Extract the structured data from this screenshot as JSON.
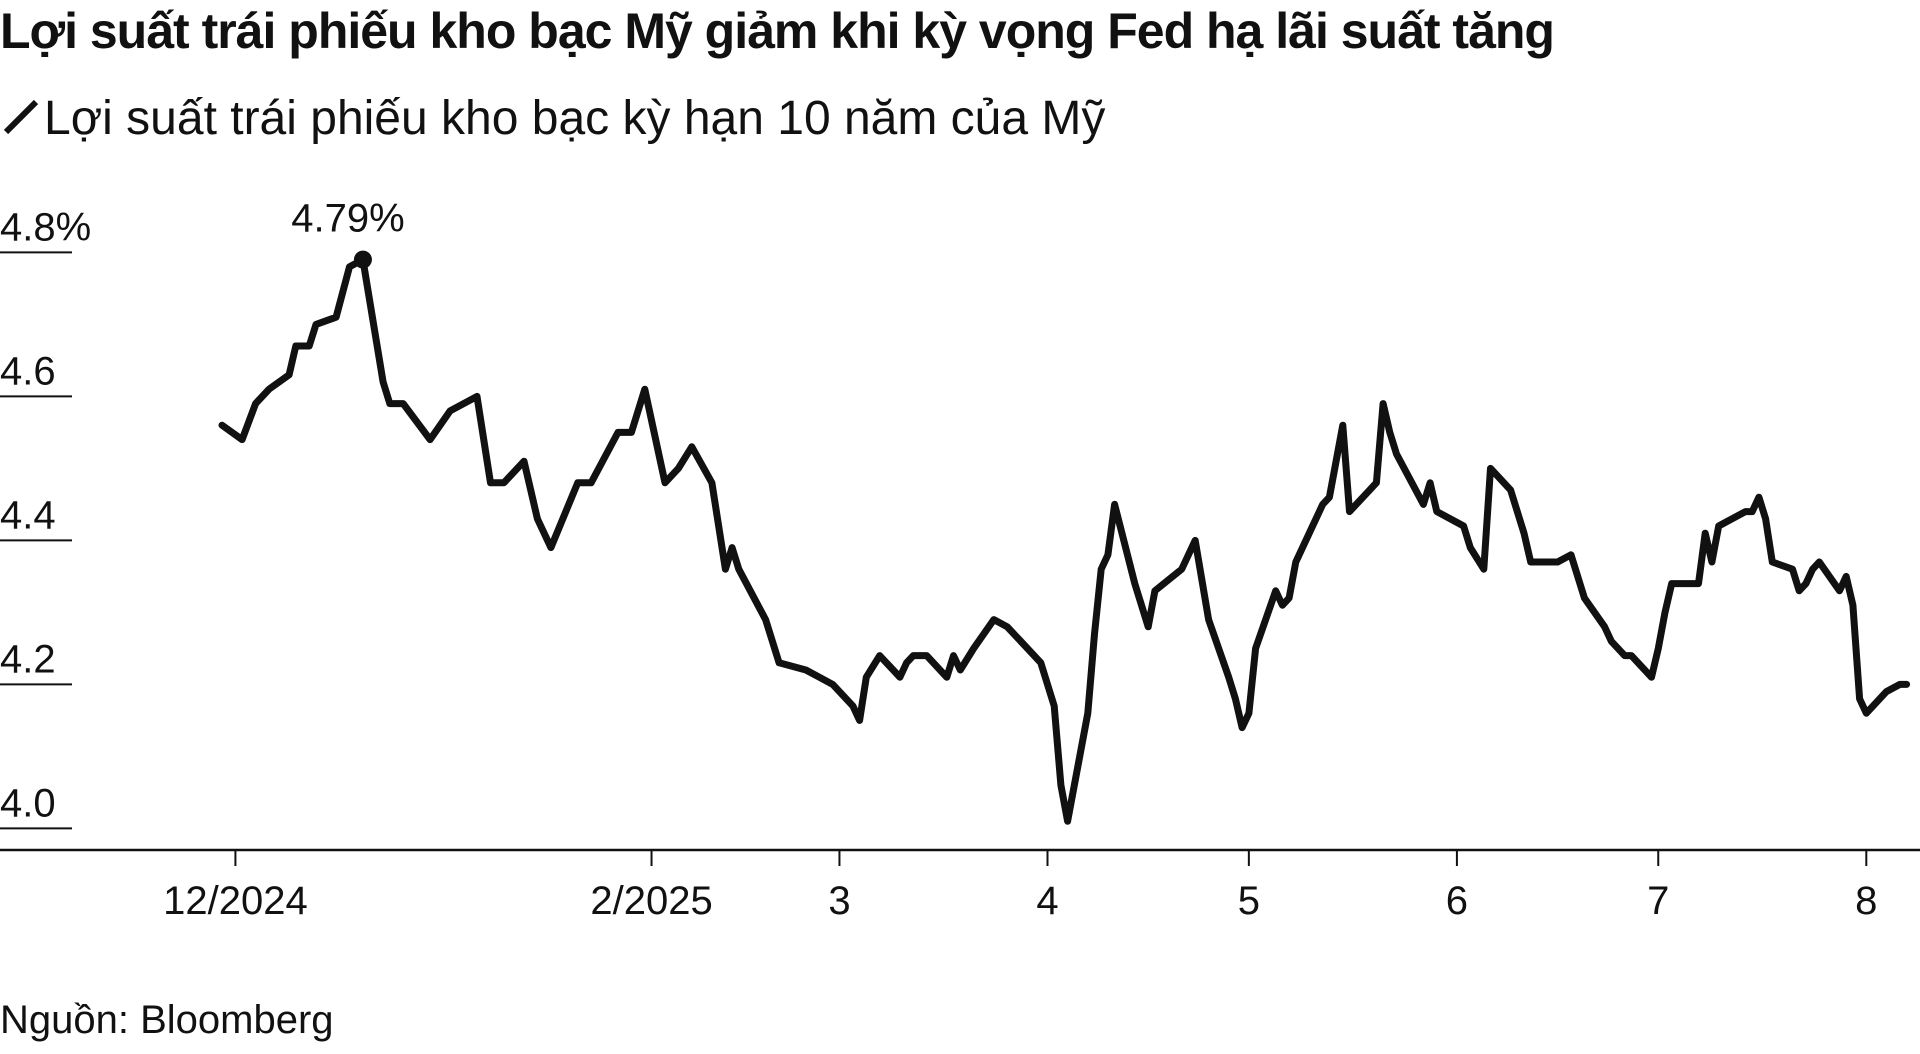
{
  "title": "Lợi suất trái phiếu kho bạc Mỹ giảm khi kỳ vọng Fed hạ lãi suất tăng",
  "source": "Nguồn: Bloomberg",
  "colors": {
    "line": "#111111",
    "axis": "#111111",
    "background": "#ffffff"
  },
  "chart_data": {
    "type": "line",
    "series": [
      {
        "name": "Lợi suất trái phiếu kho bạc kỳ hạn 10 năm của Mỹ",
        "x": [
          "2024-11-29",
          "2024-12-02",
          "2024-12-04",
          "2024-12-06",
          "2024-12-09",
          "2024-12-10",
          "2024-12-12",
          "2024-12-13",
          "2024-12-16",
          "2024-12-18",
          "2024-12-20",
          "2024-12-23",
          "2024-12-24",
          "2024-12-26",
          "2024-12-30",
          "2025-01-02",
          "2025-01-06",
          "2025-01-08",
          "2025-01-10",
          "2025-01-13",
          "2025-01-15",
          "2025-01-17",
          "2025-01-21",
          "2025-01-23",
          "2025-01-27",
          "2025-01-29",
          "2025-01-31",
          "2025-02-03",
          "2025-02-05",
          "2025-02-07",
          "2025-02-10",
          "2025-02-12",
          "2025-02-13",
          "2025-02-14",
          "2025-02-18",
          "2025-02-20",
          "2025-02-24",
          "2025-02-26",
          "2025-02-28",
          "2025-03-03",
          "2025-03-04",
          "2025-03-05",
          "2025-03-07",
          "2025-03-10",
          "2025-03-11",
          "2025-03-12",
          "2025-03-14",
          "2025-03-17",
          "2025-03-18",
          "2025-03-19",
          "2025-03-21",
          "2025-03-24",
          "2025-03-26",
          "2025-03-28",
          "2025-03-31",
          "2025-04-02",
          "2025-04-03",
          "2025-04-04",
          "2025-04-07",
          "2025-04-08",
          "2025-04-09",
          "2025-04-10",
          "2025-04-11",
          "2025-04-14",
          "2025-04-16",
          "2025-04-17",
          "2025-04-21",
          "2025-04-23",
          "2025-04-25",
          "2025-04-28",
          "2025-04-29",
          "2025-04-30",
          "2025-05-01",
          "2025-05-02",
          "2025-05-05",
          "2025-05-06",
          "2025-05-07",
          "2025-05-08",
          "2025-05-12",
          "2025-05-13",
          "2025-05-14",
          "2025-05-15",
          "2025-05-16",
          "2025-05-19",
          "2025-05-20",
          "2025-05-21",
          "2025-05-22",
          "2025-05-23",
          "2025-05-27",
          "2025-05-28",
          "2025-05-29",
          "2025-06-02",
          "2025-06-03",
          "2025-06-05",
          "2025-06-06",
          "2025-06-09",
          "2025-06-11",
          "2025-06-12",
          "2025-06-16",
          "2025-06-18",
          "2025-06-20",
          "2025-06-23",
          "2025-06-24",
          "2025-06-26",
          "2025-06-27",
          "2025-06-30",
          "2025-07-01",
          "2025-07-02",
          "2025-07-03",
          "2025-07-07",
          "2025-07-08",
          "2025-07-09",
          "2025-07-10",
          "2025-07-14",
          "2025-07-15",
          "2025-07-16",
          "2025-07-17",
          "2025-07-18",
          "2025-07-21",
          "2025-07-22",
          "2025-07-23",
          "2025-07-24",
          "2025-07-25",
          "2025-07-28",
          "2025-07-29",
          "2025-07-30",
          "2025-07-31",
          "2025-08-01",
          "2025-08-04",
          "2025-08-06",
          "2025-08-07"
        ],
        "values": [
          4.56,
          4.54,
          4.59,
          4.61,
          4.63,
          4.67,
          4.67,
          4.7,
          4.71,
          4.78,
          4.79,
          4.62,
          4.59,
          4.59,
          4.54,
          4.58,
          4.6,
          4.48,
          4.48,
          4.51,
          4.43,
          4.39,
          4.48,
          4.48,
          4.55,
          4.55,
          4.61,
          4.48,
          4.5,
          4.53,
          4.48,
          4.36,
          4.39,
          4.36,
          4.29,
          4.23,
          4.22,
          4.21,
          4.2,
          4.17,
          4.15,
          4.21,
          4.24,
          4.21,
          4.23,
          4.24,
          4.24,
          4.21,
          4.24,
          4.22,
          4.25,
          4.29,
          4.28,
          4.26,
          4.23,
          4.17,
          4.06,
          4.01,
          4.16,
          4.27,
          4.36,
          4.38,
          4.45,
          4.34,
          4.28,
          4.33,
          4.36,
          4.4,
          4.29,
          4.21,
          4.18,
          4.14,
          4.16,
          4.25,
          4.33,
          4.31,
          4.32,
          4.37,
          4.45,
          4.46,
          4.51,
          4.56,
          4.44,
          4.47,
          4.48,
          4.59,
          4.55,
          4.52,
          4.45,
          4.48,
          4.44,
          4.42,
          4.39,
          4.36,
          4.5,
          4.47,
          4.41,
          4.37,
          4.37,
          4.38,
          4.32,
          4.28,
          4.26,
          4.24,
          4.24,
          4.21,
          4.25,
          4.3,
          4.34,
          4.34,
          4.41,
          4.37,
          4.42,
          4.44,
          4.44,
          4.46,
          4.43,
          4.37,
          4.36,
          4.33,
          4.34,
          4.36,
          4.37,
          4.33,
          4.35,
          4.31,
          4.18,
          4.16,
          4.19,
          4.2,
          4.2
        ]
      }
    ],
    "xlim": [
      "2024-11-29",
      "2025-08-09"
    ],
    "ylim": [
      3.97,
      4.82
    ],
    "y_ticks": [
      {
        "value": 4.8,
        "label": "4.8%"
      },
      {
        "value": 4.6,
        "label": "4.6"
      },
      {
        "value": 4.4,
        "label": "4.4"
      },
      {
        "value": 4.2,
        "label": "4.2"
      },
      {
        "value": 4.0,
        "label": "4.0"
      }
    ],
    "x_ticks": [
      {
        "value": "2024-12-01",
        "label": "12/2024"
      },
      {
        "value": "2025-02-01",
        "label": "2/2025"
      },
      {
        "value": "2025-03-01",
        "label": "3"
      },
      {
        "value": "2025-04-01",
        "label": "4"
      },
      {
        "value": "2025-05-01",
        "label": "5"
      },
      {
        "value": "2025-06-01",
        "label": "6"
      },
      {
        "value": "2025-07-01",
        "label": "7"
      },
      {
        "value": "2025-08-01",
        "label": "8"
      }
    ],
    "annotations": [
      {
        "x": "2024-12-20",
        "y": 4.79,
        "label": "4.79%",
        "marker": "dot"
      }
    ],
    "grid": false,
    "legend_position": "top-left"
  }
}
